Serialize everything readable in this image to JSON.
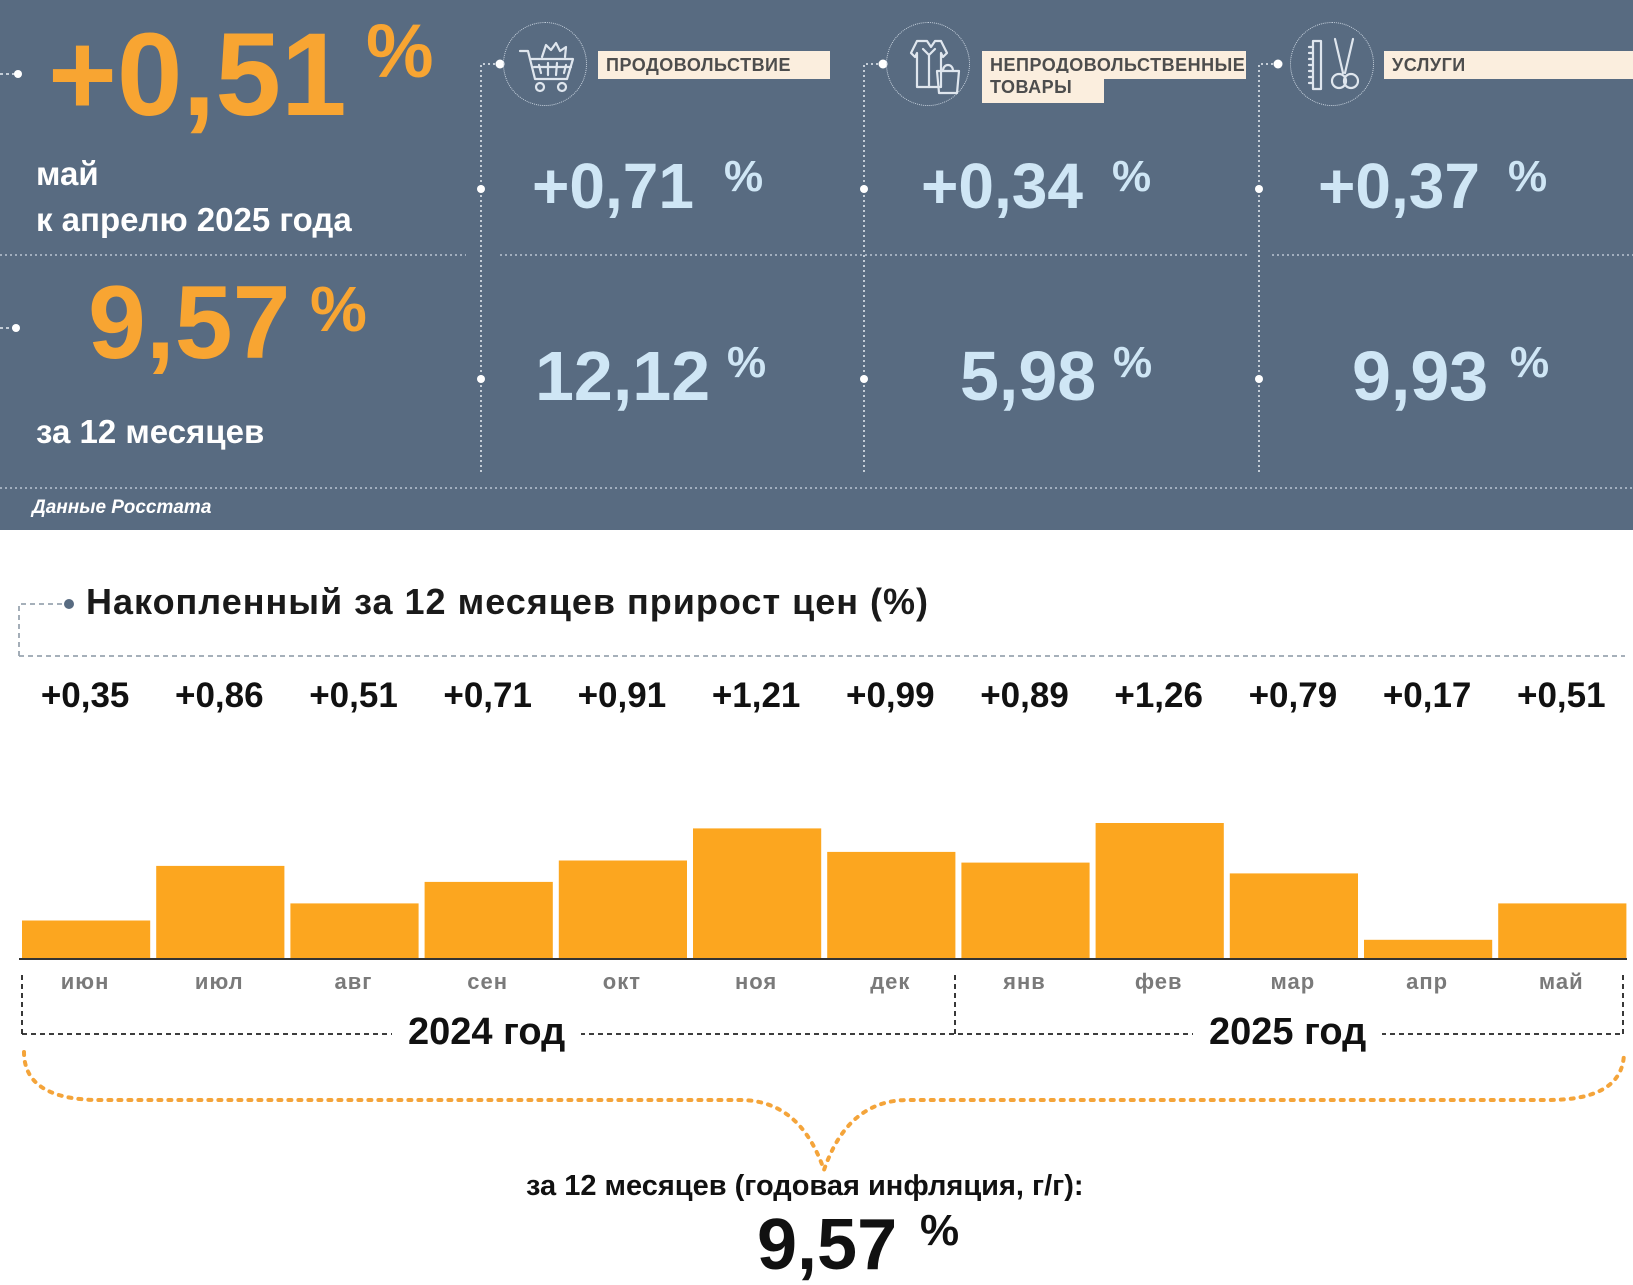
{
  "headline": {
    "monthly_value": "+0,51",
    "percent_sign": "%",
    "month_label": "май",
    "period_label": "к апрелю 2025 года",
    "annual_value": "9,57",
    "annual_label": "за 12 месяцев"
  },
  "categories": [
    {
      "label_line1": "ПРОДОВОЛЬСТВИЕ",
      "label_line2": "",
      "icon": "shopping-cart-icon",
      "monthly": "+0,71",
      "annual": "12,12"
    },
    {
      "label_line1": "НЕПРОДОВОЛЬСТВЕННЫЕ",
      "label_line2": "ТОВАРЫ",
      "icon": "clothing-bag-icon",
      "monthly": "+0,34",
      "annual": "5,98"
    },
    {
      "label_line1": "УСЛУГИ",
      "label_line2": "",
      "icon": "scissors-comb-icon",
      "monthly": "+0,37",
      "annual": "9,93"
    }
  ],
  "source_note": "Данные Росстата",
  "chart_data": {
    "type": "bar",
    "title": "Накопленный за 12 месяцев прирост цен (%)",
    "categories": [
      "июн",
      "июл",
      "авг",
      "сен",
      "окт",
      "ноя",
      "дек",
      "янв",
      "фев",
      "мар",
      "апр",
      "май"
    ],
    "values": [
      0.35,
      0.86,
      0.51,
      0.71,
      0.91,
      1.21,
      0.99,
      0.89,
      1.26,
      0.79,
      0.17,
      0.51
    ],
    "value_labels": [
      "+0,35",
      "+0,86",
      "+0,51",
      "+0,71",
      "+0,91",
      "+1,21",
      "+0,99",
      "+0,89",
      "+1,26",
      "+0,79",
      "+0,17",
      "+0,51"
    ],
    "bar_color": "#fca61f",
    "ylim": [
      0,
      1.3
    ],
    "grid": false,
    "year_groups": [
      {
        "label": "2024 год",
        "months": 7
      },
      {
        "label": "2025 год",
        "months": 5
      }
    ]
  },
  "summary": {
    "caption": "за 12 месяцев (годовая инфляция, г/г):",
    "value": "9,57",
    "percent_sign": "%"
  },
  "colors": {
    "panel_bg": "#586b81",
    "accent_orange": "#f8a532",
    "value_light_blue": "#cfe6f5",
    "label_bg": "#fbeede",
    "bar": "#fca61f"
  }
}
